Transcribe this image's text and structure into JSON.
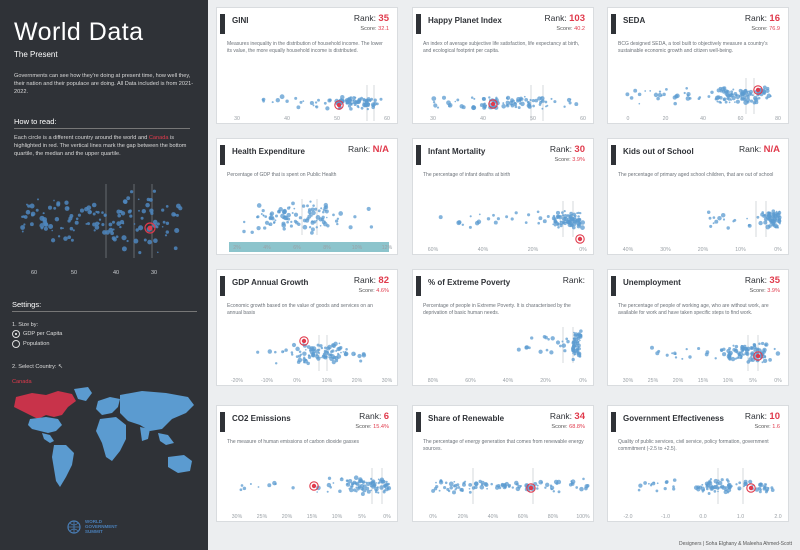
{
  "sidebar": {
    "title": "World Data",
    "subtitle": "The Present",
    "intro": "Governments can see how they're doing at present time, how well they, their nation and their populace are doing. All Data included is from 2021-2022.",
    "how_to_read_heading": "How to read:",
    "how_to_read_pre": "Each circle is a different country around the world and ",
    "how_to_read_highlight": "Canada",
    "how_to_read_post": " is highlighted in red. The vertical lines mark the gap between the bottom quartile, the median and the upper quartile.",
    "sample_ticks": [
      "60",
      "50",
      "40",
      "30"
    ],
    "settings_heading": "Settings:",
    "size_by_label": "1. Size by:",
    "size_options": [
      "GDP per Capita",
      "Population"
    ],
    "size_selected": "GDP per Capita",
    "select_country_label": "2. Select Country:",
    "selected_country": "Canada",
    "logo_lines": [
      "WORLD",
      "GOVERNMENT",
      "SUMMIT"
    ]
  },
  "colors": {
    "accent": "#e03a4c",
    "dot": "#5b9bd0",
    "dark": "#2f3237"
  },
  "rank_label": "Rank:",
  "score_label": "Score:",
  "cards": [
    {
      "title": "GINI",
      "rank": "35",
      "score": "32.1",
      "desc": "Measures inequality in the distribution of household income. The lower its value, the more equally household income is distributed.",
      "ticks": [
        "30",
        "40",
        "50",
        "60"
      ]
    },
    {
      "title": "Happy Planet Index",
      "rank": "103",
      "score": "40.2",
      "desc": "An index of average subjective life satisfaction, life expectancy at birth, and ecological footprint per capita.",
      "ticks": [
        "30",
        "40",
        "50",
        "60"
      ]
    },
    {
      "title": "SEDA",
      "rank": "16",
      "score": "76.9",
      "desc": "BCG designed SEDA, a tool built to objectively measure a country's sustainable economic growth and citizen well-being.",
      "ticks": [
        "0",
        "20",
        "40",
        "60",
        "80"
      ]
    },
    {
      "title": "Health Expenditure",
      "rank": "N/A",
      "score": "",
      "desc": "Percentage of GDP that is spent on Public Health",
      "ticks": [
        "2%",
        "4%",
        "6%",
        "8%",
        "10%",
        "12%"
      ]
    },
    {
      "title": "Infant Mortality",
      "rank": "30",
      "score": "3.9%",
      "desc": "The percentage of infant deaths at birth",
      "ticks": [
        "60%",
        "40%",
        "20%",
        "0%"
      ]
    },
    {
      "title": "Kids out of School",
      "rank": "N/A",
      "score": "",
      "desc": "The percentage of primary aged school children, that are out of school",
      "ticks": [
        "40%",
        "30%",
        "20%",
        "10%",
        "0%"
      ]
    },
    {
      "title": "GDP Annual Growth",
      "rank": "82",
      "score": "4.6%",
      "desc": "Economic growth based on the value of goods and services on an annual basis",
      "ticks": [
        "-20%",
        "-10%",
        "0%",
        "10%",
        "20%",
        "30%"
      ]
    },
    {
      "title": "% of Extreme Poverty",
      "rank": "",
      "score": "",
      "desc": "Percentage of people in Extreme Poverty. It is characterised by the deprivation of basic human needs.",
      "ticks": [
        "80%",
        "60%",
        "40%",
        "20%",
        "0%"
      ]
    },
    {
      "title": "Unemployment",
      "rank": "35",
      "score": "3.9%",
      "desc": "The percentage of people of working age, who are without work, are available for work and have taken specific steps to find work.",
      "ticks": [
        "30%",
        "25%",
        "20%",
        "15%",
        "10%",
        "5%",
        "0%"
      ]
    },
    {
      "title": "CO2 Emissions",
      "rank": "6",
      "score": "15.4%",
      "desc": "The measure of human emissions of carbon dioxide gasses",
      "ticks": [
        "30%",
        "25%",
        "20%",
        "15%",
        "10%",
        "5%",
        "0%"
      ]
    },
    {
      "title": "Share of Renewable",
      "rank": "34",
      "score": "68.8%",
      "desc": "The percentage of energy generation that comes from renewable energy sources.",
      "ticks": [
        "0%",
        "20%",
        "40%",
        "60%",
        "80%",
        "100%"
      ]
    },
    {
      "title": "Government Effectiveness",
      "rank": "10",
      "score": "1.6",
      "desc": "Quality of public services, civil service, policy formation, government commitment (-2.5 to +2.5).",
      "ticks": [
        "-2.0",
        "-1.0",
        "0.0",
        "1.0",
        "2.0"
      ]
    }
  ],
  "credits": "Designers | Soha Elghany & Maleeha Ahmed-Scott"
}
